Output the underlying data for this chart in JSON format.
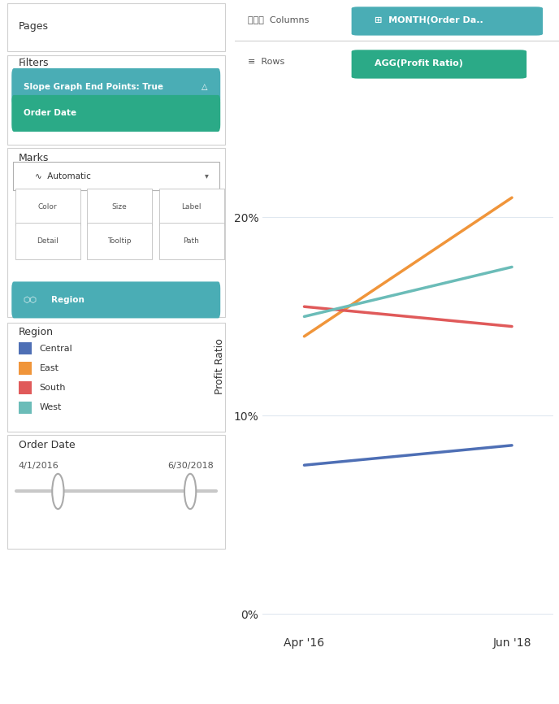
{
  "regions": [
    "Central",
    "East",
    "South",
    "West"
  ],
  "colors": {
    "Central": "#4e6fb5",
    "East": "#f0953a",
    "South": "#e05a5a",
    "West": "#6bbcb8"
  },
  "x_values": [
    0,
    1
  ],
  "x_labels": [
    "Apr '16",
    "Jun '18"
  ],
  "data": {
    "Central": [
      0.075,
      0.085
    ],
    "East": [
      0.14,
      0.21
    ],
    "South": [
      0.155,
      0.145
    ],
    "West": [
      0.15,
      0.175
    ]
  },
  "yticks": [
    0.0,
    0.1,
    0.2
  ],
  "ytick_labels": [
    "0%",
    "10%",
    "20%"
  ],
  "ylabel": "Profit Ratio",
  "ylim": [
    -0.01,
    0.26
  ],
  "xlim": [
    -0.2,
    1.2
  ],
  "bg_color": "#ffffff",
  "panel_bg": "#f9f9f9",
  "left_panel_bg": "#f2f2f2",
  "grid_color": "#e0e8f0",
  "line_width": 2.5,
  "pages_label": "Pages",
  "columns_label": "Columns",
  "columns_pill": "MONTH(Order Da..",
  "rows_label": "Rows",
  "rows_pill": "AGG(Profit Ratio)",
  "filters_label": "Filters",
  "filter1_text": "Slope Graph End Points: True",
  "filter2_text": "Order Date",
  "marks_label": "Marks",
  "marks_dropdown": "Automatic",
  "marks_pill": "Region",
  "legend_title": "Region",
  "order_date_label": "Order Date",
  "date_range_start": "4/1/2016",
  "date_range_end": "6/30/2018"
}
